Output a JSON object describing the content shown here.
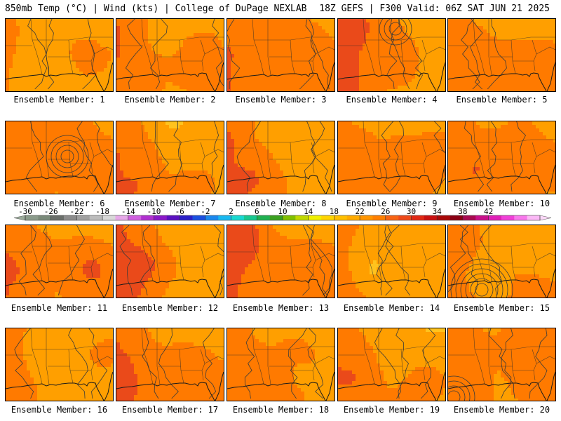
{
  "header": {
    "left_title": "850mb Temp (°C) | Wind (kts) | College of DuPage NEXLAB",
    "right_title": "18Z GEFS | F300 Valid: 06Z SAT JUN 21 2025"
  },
  "members": [
    {
      "label": "Ensemble Member: 1"
    },
    {
      "label": "Ensemble Member: 2"
    },
    {
      "label": "Ensemble Member: 3"
    },
    {
      "label": "Ensemble Member: 4"
    },
    {
      "label": "Ensemble Member: 5"
    },
    {
      "label": "Ensemble Member: 6"
    },
    {
      "label": "Ensemble Member: 7"
    },
    {
      "label": "Ensemble Member: 8"
    },
    {
      "label": "Ensemble Member: 9"
    },
    {
      "label": "Ensemble Member: 10"
    },
    {
      "label": "Ensemble Member: 11"
    },
    {
      "label": "Ensemble Member: 12"
    },
    {
      "label": "Ensemble Member: 13"
    },
    {
      "label": "Ensemble Member: 14"
    },
    {
      "label": "Ensemble Member: 15"
    },
    {
      "label": "Ensemble Member: 16"
    },
    {
      "label": "Ensemble Member: 17"
    },
    {
      "label": "Ensemble Member: 18"
    },
    {
      "label": "Ensemble Member: 19"
    },
    {
      "label": "Ensemble Member: 20"
    }
  ],
  "colorbar": {
    "ticks": [
      "-30",
      "-26",
      "-22",
      "-18",
      "-14",
      "-10",
      "-6",
      "-2",
      "2",
      "6",
      "10",
      "14",
      "18",
      "22",
      "26",
      "30",
      "34",
      "38",
      "42"
    ],
    "colors": [
      "#8a9a8a",
      "#7a8a7a",
      "#6a6e6a",
      "#8c8c8c",
      "#a0a0a0",
      "#bcbcbc",
      "#d8d8d8",
      "#e6a8e8",
      "#d060e0",
      "#b030d0",
      "#8a18c8",
      "#5a10c0",
      "#2a20c8",
      "#1a50e0",
      "#1a88ee",
      "#18b8f0",
      "#18d8d0",
      "#18c890",
      "#20b050",
      "#3aa020",
      "#80c000",
      "#c0d800",
      "#f0f000",
      "#ffd400",
      "#ffbf00",
      "#ffaa00",
      "#ff9500",
      "#ff7f00",
      "#f86414",
      "#ee4a1a",
      "#e02814",
      "#c81010",
      "#a80808",
      "#8a0014",
      "#a80a50",
      "#c8108a",
      "#e020b8",
      "#f040d8",
      "#f878ec",
      "#fbb8f6"
    ],
    "legend_colors": {
      "t14_18": "#ffc31e",
      "t18_22": "#ff9f00",
      "t22_26": "#ff7a00",
      "t26_30": "#ea4a1a",
      "t30plus": "#cc1a10"
    }
  }
}
